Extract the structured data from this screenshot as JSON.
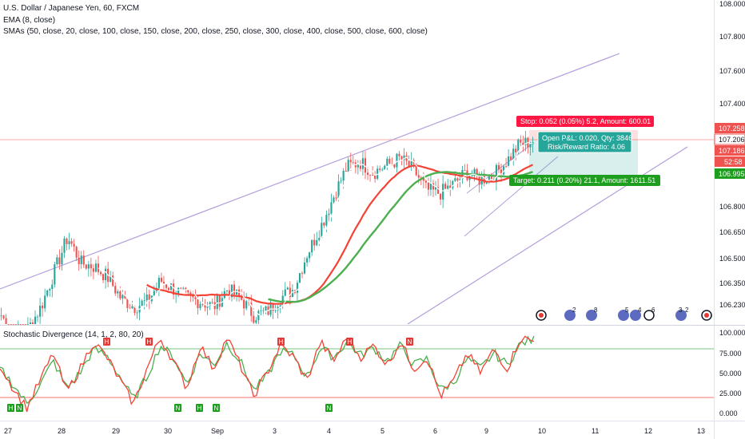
{
  "header": {
    "symbol_line": "U.S. Dollar / Japanese Yen, 60, FXCM",
    "ema_line": "EMA (8, close)",
    "sma_line": "SMAs (50, close, 20, close, 100, close, 150, close, 200, close, 250, close, 300, close, 400, close, 500, close, 600, close)",
    "oscillator_line": "Stochastic Divergence (14, 1, 2, 80, 20)"
  },
  "price_axis": {
    "ticks": [
      "108.000",
      "107.800",
      "107.600",
      "107.400",
      "106.800",
      "106.650",
      "106.500",
      "106.350",
      "106.230"
    ],
    "tags": {
      "stop": "107.258",
      "last": "107.206",
      "bid": "107.186",
      "countdown": "52:58",
      "target": "106.995"
    }
  },
  "osc_axis": {
    "ticks": [
      "100.000",
      "75.000",
      "50.000",
      "25.000",
      "0.000"
    ]
  },
  "time_axis": {
    "labels": [
      "27",
      "28",
      "29",
      "30",
      "Sep",
      "3",
      "4",
      "5",
      "6",
      "9",
      "10",
      "11",
      "12",
      "13"
    ]
  },
  "position_tool": {
    "stop_label": "Stop: 0.052 (0.05%) 5.2, Amount: 600.01",
    "pnl_label": "Open P&L: 0.020, Qty: 3846",
    "rr_label": "Risk/Reward Ratio: 4.06",
    "target_label": "Target: 0.211 (0.20%) 21.1, Amount: 1611.51"
  },
  "divergence_markers": [
    "H",
    "N",
    "H",
    "N",
    "H",
    "N",
    "H",
    "N",
    "H",
    "N",
    "H"
  ],
  "event_badges": [
    "2",
    "8",
    "5",
    "4",
    "6",
    "3",
    "2"
  ],
  "colors": {
    "up": "#26a69a",
    "down": "#ef5350",
    "channel": "#b39ddb",
    "ema": "#ffffff",
    "sma_red": "#f44336",
    "sma_green": "#4caf50",
    "stop_red": "#ff1744",
    "target_green": "#1e9e1e",
    "osc_k": "#f44336",
    "osc_d": "#4caf50",
    "badge_red": "#e53935",
    "badge_flag": "#5c6bc0"
  },
  "chart_data": {
    "type": "candlestick",
    "symbol": "U.S. Dollar / Japanese Yen",
    "interval": "60",
    "price_range": [
      106.15,
      108.0
    ],
    "close_path": [
      106.2,
      106.08,
      106.12,
      106.25,
      106.45,
      106.65,
      106.5,
      106.48,
      106.42,
      106.3,
      106.25,
      106.28,
      106.4,
      106.35,
      106.3,
      106.28,
      106.25,
      106.35,
      106.3,
      106.2,
      106.22,
      106.3,
      106.35,
      106.55,
      106.7,
      106.88,
      107.05,
      107.08,
      107.02,
      107.06,
      107.1,
      107.04,
      106.92,
      106.9,
      106.95,
      107.02,
      106.98,
      107.0,
      107.08,
      107.18,
      107.2
    ],
    "last_price": 107.206,
    "stop_price": 107.258,
    "target_price": 106.995,
    "oscillator": {
      "name": "Stochastic Divergence",
      "params": [
        14,
        1,
        2,
        80,
        20
      ],
      "levels": [
        80,
        20
      ],
      "range": [
        0,
        100
      ],
      "k": [
        60,
        30,
        5,
        40,
        75,
        25,
        55,
        90,
        70,
        40,
        10,
        55,
        95,
        65,
        30,
        85,
        55,
        95,
        60,
        20,
        50,
        85,
        70,
        40,
        90,
        65,
        95,
        70,
        85,
        60,
        90,
        55,
        70,
        20,
        40,
        75,
        50,
        80,
        55,
        95,
        90
      ],
      "d": [
        55,
        35,
        10,
        35,
        65,
        30,
        50,
        80,
        72,
        45,
        15,
        45,
        85,
        70,
        35,
        75,
        60,
        88,
        65,
        28,
        45,
        78,
        72,
        45,
        82,
        70,
        90,
        72,
        82,
        65,
        85,
        60,
        68,
        28,
        38,
        68,
        55,
        75,
        60,
        88,
        92
      ]
    }
  }
}
